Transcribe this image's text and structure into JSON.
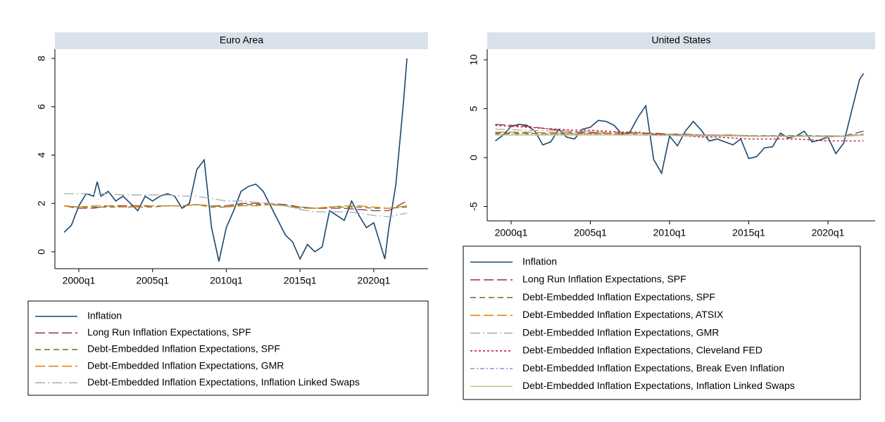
{
  "chart_data": [
    {
      "type": "line",
      "title": "Euro Area",
      "xlim": [
        1998.38,
        2023.68
      ],
      "ylim": [
        -0.7,
        8.38
      ],
      "xticks": [
        {
          "value": 2000,
          "label": "2000q1"
        },
        {
          "value": 2005,
          "label": "2005q1"
        },
        {
          "value": 2010,
          "label": "2010q1"
        },
        {
          "value": 2015,
          "label": "2015q1"
        },
        {
          "value": 2020,
          "label": "2020q1"
        }
      ],
      "yticks": [
        0,
        2,
        4,
        6,
        8
      ],
      "series": [
        {
          "name": "Inflation",
          "color": "#1a476f",
          "dash": "solid",
          "x": [
            1999,
            1999.5,
            2000,
            2000.5,
            2001,
            2001.25,
            2001.5,
            2002,
            2002.5,
            2003,
            2003.5,
            2004,
            2004.5,
            2005,
            2005.5,
            2006,
            2006.5,
            2007,
            2007.5,
            2008,
            2008.5,
            2009,
            2009.5,
            2010,
            2010.5,
            2011,
            2011.5,
            2012,
            2012.5,
            2013,
            2013.5,
            2014,
            2014.5,
            2015,
            2015.5,
            2016,
            2016.5,
            2017,
            2017.5,
            2018,
            2018.5,
            2019,
            2019.5,
            2020,
            2020.5,
            2020.75,
            2021,
            2021.5,
            2022,
            2022.25
          ],
          "values": [
            0.8,
            1.1,
            1.9,
            2.4,
            2.3,
            2.9,
            2.3,
            2.5,
            2.1,
            2.3,
            2.0,
            1.7,
            2.3,
            2.1,
            2.3,
            2.4,
            2.3,
            1.8,
            2.0,
            3.4,
            3.8,
            1.0,
            -0.4,
            1.0,
            1.7,
            2.5,
            2.7,
            2.8,
            2.5,
            1.9,
            1.3,
            0.7,
            0.4,
            -0.3,
            0.3,
            0.0,
            0.2,
            1.7,
            1.5,
            1.3,
            2.1,
            1.5,
            1.0,
            1.2,
            0.2,
            -0.3,
            0.9,
            2.8,
            6.1,
            8.0
          ]
        },
        {
          "name": "Long Run Inflation Expectations, SPF",
          "color": "#90353b",
          "dash": "long-dash",
          "x": [
            1999,
            2000,
            2001,
            2002,
            2003,
            2004,
            2005,
            2006,
            2007,
            2008,
            2009,
            2010,
            2011,
            2012,
            2013,
            2014,
            2015,
            2016,
            2017,
            2018,
            2019,
            2020,
            2021,
            2022.25
          ],
          "values": [
            1.9,
            1.8,
            1.8,
            1.9,
            1.9,
            1.9,
            1.9,
            1.9,
            1.9,
            1.95,
            1.9,
            1.9,
            2.0,
            2.0,
            2.0,
            1.95,
            1.85,
            1.8,
            1.8,
            1.8,
            1.75,
            1.7,
            1.7,
            2.1
          ]
        },
        {
          "name": "Debt-Embedded Inflation Expectations, SPF",
          "color": "#55752f",
          "dash": "dash",
          "x": [
            1999,
            2000,
            2001,
            2002,
            2003,
            2004,
            2005,
            2006,
            2007,
            2008,
            2009,
            2010,
            2011,
            2012,
            2013,
            2014,
            2015,
            2016,
            2017,
            2018,
            2019,
            2020,
            2021,
            2022.25
          ],
          "values": [
            1.9,
            1.85,
            1.85,
            1.85,
            1.85,
            1.85,
            1.85,
            1.9,
            1.9,
            1.95,
            1.85,
            1.85,
            1.95,
            1.95,
            1.95,
            1.9,
            1.85,
            1.8,
            1.85,
            1.85,
            1.85,
            1.8,
            1.8,
            1.85
          ]
        },
        {
          "name": "Debt-Embedded Inflation Expectations, GMR",
          "color": "#e37e00",
          "dash": "long-dash",
          "x": [
            1999,
            2000,
            2001,
            2002,
            2003,
            2004,
            2005,
            2006,
            2007,
            2008,
            2009,
            2010,
            2011,
            2012,
            2013,
            2014,
            2015,
            2016,
            2017,
            2018,
            2019,
            2020,
            2021,
            2022.25
          ],
          "values": [
            1.9,
            1.85,
            1.9,
            1.9,
            1.85,
            1.85,
            1.9,
            1.9,
            1.9,
            1.95,
            1.9,
            1.85,
            1.9,
            1.9,
            1.95,
            1.9,
            1.8,
            1.8,
            1.85,
            1.9,
            1.9,
            1.85,
            1.8,
            1.9
          ]
        },
        {
          "name": "Debt-Embedded Inflation Expectations, Inflation Linked Swaps",
          "color": "#a0b0a8",
          "dash": "long-dash-dot",
          "x": [
            1999,
            2000,
            2001,
            2002,
            2003,
            2004,
            2005,
            2006,
            2007,
            2008,
            2009,
            2010,
            2011,
            2012,
            2013,
            2014,
            2015,
            2016,
            2017,
            2018,
            2019,
            2020,
            2021,
            2022.25
          ],
          "values": [
            2.4,
            2.4,
            2.4,
            2.4,
            2.35,
            2.35,
            2.35,
            2.35,
            2.3,
            2.3,
            2.2,
            2.1,
            2.1,
            2.05,
            2.0,
            1.9,
            1.75,
            1.65,
            1.65,
            1.65,
            1.6,
            1.5,
            1.45,
            1.6
          ]
        }
      ]
    },
    {
      "type": "line",
      "title": "United States",
      "xlim": [
        1998.49,
        2022.98
      ],
      "ylim": [
        -6.47,
        11.08
      ],
      "xticks": [
        {
          "value": 2000,
          "label": "2000q1"
        },
        {
          "value": 2005,
          "label": "2005q1"
        },
        {
          "value": 2010,
          "label": "2010q1"
        },
        {
          "value": 2015,
          "label": "2015q1"
        },
        {
          "value": 2020,
          "label": "2020q1"
        }
      ],
      "yticks": [
        -5,
        0,
        5,
        10
      ],
      "series": [
        {
          "name": "Inflation",
          "color": "#1a476f",
          "dash": "solid",
          "x": [
            1999,
            1999.5,
            2000,
            2000.5,
            2001,
            2001.5,
            2002,
            2002.5,
            2003,
            2003.5,
            2004,
            2004.5,
            2005,
            2005.5,
            2006,
            2006.5,
            2007,
            2007.5,
            2008,
            2008.5,
            2009,
            2009.5,
            2010,
            2010.5,
            2011,
            2011.5,
            2012,
            2012.5,
            2013,
            2013.5,
            2014,
            2014.5,
            2015,
            2015.5,
            2016,
            2016.5,
            2017,
            2017.5,
            2018,
            2018.5,
            2019,
            2019.5,
            2020,
            2020.5,
            2021,
            2021.5,
            2022,
            2022.25
          ],
          "values": [
            1.7,
            2.3,
            3.2,
            3.4,
            3.3,
            2.7,
            1.3,
            1.6,
            2.9,
            2.1,
            1.9,
            2.9,
            3.1,
            3.8,
            3.7,
            3.3,
            2.4,
            2.6,
            4.1,
            5.3,
            -0.2,
            -1.6,
            2.2,
            1.2,
            2.7,
            3.7,
            2.8,
            1.7,
            1.9,
            1.6,
            1.3,
            1.9,
            -0.1,
            0.1,
            1.0,
            1.1,
            2.5,
            2.0,
            2.2,
            2.7,
            1.6,
            1.8,
            2.1,
            0.4,
            1.5,
            4.8,
            8.0,
            8.6
          ]
        },
        {
          "name": "Long Run Inflation Expectations, SPF",
          "color": "#90353b",
          "dash": "long-dash",
          "x": [
            1999,
            2000,
            2001,
            2002,
            2003,
            2004,
            2005,
            2006,
            2007,
            2008,
            2009,
            2010,
            2011,
            2012,
            2013,
            2014,
            2015,
            2016,
            2017,
            2018,
            2019,
            2020,
            2021,
            2022.25
          ],
          "values": [
            3.4,
            3.3,
            3.2,
            3.0,
            2.8,
            2.6,
            2.6,
            2.5,
            2.5,
            2.5,
            2.5,
            2.4,
            2.4,
            2.3,
            2.3,
            2.3,
            2.2,
            2.2,
            2.2,
            2.2,
            2.2,
            2.2,
            2.2,
            2.7
          ]
        },
        {
          "name": "Debt-Embedded Inflation Expectations, SPF",
          "color": "#55752f",
          "dash": "dash",
          "x": [
            1999,
            2000,
            2001,
            2002,
            2003,
            2004,
            2005,
            2006,
            2007,
            2008,
            2009,
            2010,
            2011,
            2012,
            2013,
            2014,
            2015,
            2016,
            2017,
            2018,
            2019,
            2020,
            2021,
            2022.25
          ],
          "values": [
            2.5,
            2.5,
            2.5,
            2.45,
            2.45,
            2.45,
            2.45,
            2.45,
            2.4,
            2.45,
            2.4,
            2.35,
            2.35,
            2.3,
            2.3,
            2.3,
            2.25,
            2.25,
            2.25,
            2.25,
            2.25,
            2.2,
            2.2,
            2.4
          ]
        },
        {
          "name": "Debt-Embedded Inflation Expectations, ATSIX",
          "color": "#e37e00",
          "dash": "long-dash",
          "x": [
            1999,
            2000,
            2001,
            2002,
            2003,
            2004,
            2005,
            2006,
            2007,
            2008,
            2009,
            2010,
            2011,
            2012,
            2013,
            2014,
            2015,
            2016,
            2017,
            2018,
            2019,
            2020,
            2021,
            2022.25
          ],
          "values": [
            2.6,
            2.6,
            2.6,
            2.55,
            2.55,
            2.55,
            2.5,
            2.5,
            2.5,
            2.5,
            2.4,
            2.35,
            2.3,
            2.3,
            2.3,
            2.25,
            2.25,
            2.2,
            2.2,
            2.2,
            2.2,
            2.15,
            2.15,
            2.3
          ]
        },
        {
          "name": "Debt-Embedded Inflation Expectations, GMR",
          "color": "#a0b0a8",
          "dash": "long-dash-dot",
          "x": [
            1999,
            2000,
            2001,
            2002,
            2003,
            2004,
            2005,
            2006,
            2007,
            2008,
            2009,
            2010,
            2011,
            2012,
            2013,
            2014,
            2015,
            2016,
            2017,
            2018,
            2019,
            2020,
            2021,
            2022.25
          ],
          "values": [
            2.9,
            2.85,
            2.8,
            2.75,
            2.7,
            2.7,
            2.65,
            2.6,
            2.6,
            2.55,
            2.45,
            2.4,
            2.35,
            2.3,
            2.3,
            2.3,
            2.25,
            2.25,
            2.2,
            2.2,
            2.2,
            2.2,
            2.2,
            2.3
          ]
        },
        {
          "name": "Debt-Embedded Inflation Expectations, Cleveland FED",
          "color": "#c10534",
          "dash": "short-dash",
          "x": [
            1999,
            2000,
            2001,
            2002,
            2003,
            2004,
            2005,
            2006,
            2007,
            2008,
            2009,
            2010,
            2011,
            2012,
            2013,
            2014,
            2015,
            2016,
            2017,
            2018,
            2019,
            2020,
            2021,
            2022.25
          ],
          "values": [
            3.3,
            3.2,
            3.1,
            3.0,
            2.9,
            2.8,
            2.8,
            2.7,
            2.6,
            2.6,
            2.4,
            2.3,
            2.2,
            2.1,
            2.1,
            2.0,
            1.9,
            1.9,
            1.9,
            1.9,
            1.8,
            1.7,
            1.7,
            1.7
          ]
        },
        {
          "name": "Debt-Embedded Inflation Expectations, Break Even Inflation",
          "color": "#938dd2",
          "dash": "dash-dot",
          "x": [
            1999,
            2000,
            2001,
            2002,
            2003,
            2004,
            2005,
            2006,
            2007,
            2008,
            2009,
            2010,
            2011,
            2012,
            2013,
            2014,
            2015,
            2016,
            2017,
            2018,
            2019,
            2020,
            2021,
            2022.25
          ],
          "values": [
            2.4,
            2.4,
            2.4,
            2.4,
            2.4,
            2.4,
            2.4,
            2.4,
            2.4,
            2.4,
            2.3,
            2.3,
            2.3,
            2.3,
            2.25,
            2.25,
            2.2,
            2.2,
            2.2,
            2.2,
            2.2,
            2.1,
            2.2,
            2.4
          ]
        },
        {
          "name": "Debt-Embedded Inflation Expectations, Inflation Linked Swaps",
          "color": "#cac27e",
          "dash": "solid",
          "x": [
            1999,
            2000,
            2001,
            2002,
            2003,
            2004,
            2005,
            2006,
            2007,
            2008,
            2009,
            2010,
            2011,
            2012,
            2013,
            2014,
            2015,
            2016,
            2017,
            2018,
            2019,
            2020,
            2021,
            2022.25
          ],
          "values": [
            2.3,
            2.3,
            2.3,
            2.3,
            2.3,
            2.3,
            2.3,
            2.3,
            2.3,
            2.3,
            2.25,
            2.25,
            2.2,
            2.2,
            2.2,
            2.2,
            2.15,
            2.15,
            2.15,
            2.15,
            2.15,
            2.1,
            2.15,
            2.3
          ]
        }
      ]
    }
  ]
}
